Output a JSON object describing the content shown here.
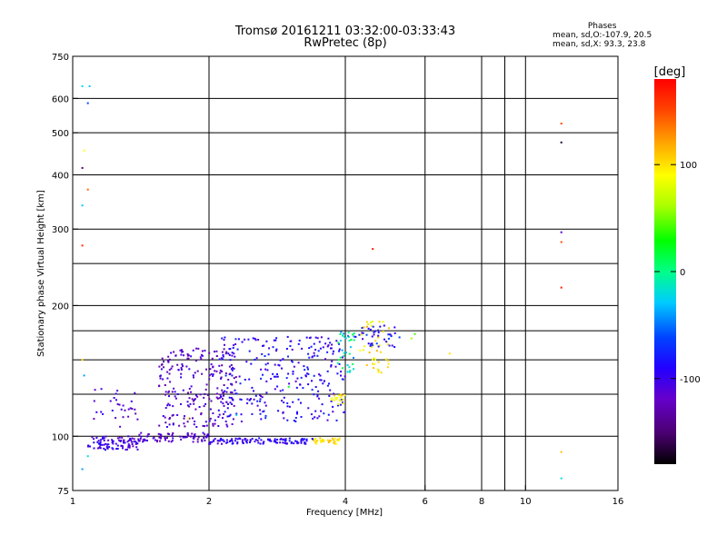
{
  "header": {
    "title": "Tromsø 20161211 03:32:00-03:33:43",
    "subtitle": "RwPretec (8p)"
  },
  "phases_box": {
    "heading": "Phases",
    "line_o": "mean, sd,O:-107.9, 20.5",
    "line_x": "mean, sd,X:  93.3, 23.8"
  },
  "colorbar": {
    "label": "[deg]",
    "range": [
      -180,
      180
    ],
    "ticks": [
      {
        "value": 100,
        "label": "100"
      },
      {
        "value": 0,
        "label": "0"
      },
      {
        "value": -100,
        "label": "-100"
      }
    ]
  },
  "chart_data": {
    "type": "scatter",
    "xlabel": "Frequency [MHz]",
    "ylabel": "Stationary phase Virtual Height [km]",
    "xscale": "log",
    "yscale": "log",
    "xlim": [
      1,
      16
    ],
    "ylim": [
      75,
      750
    ],
    "xticks": [
      {
        "value": 1,
        "label": "1"
      },
      {
        "value": 2,
        "label": "2"
      },
      {
        "value": 4,
        "label": "4"
      },
      {
        "value": 6,
        "label": "6"
      },
      {
        "value": 8,
        "label": "8"
      },
      {
        "value": 10,
        "label": "10"
      },
      {
        "value": 16,
        "label": "16"
      }
    ],
    "xgrid": [
      2,
      4,
      6,
      8,
      9,
      10
    ],
    "yticks": [
      {
        "value": 75,
        "label": "75"
      },
      {
        "value": 100,
        "label": "100"
      },
      {
        "value": 200,
        "label": "200"
      },
      {
        "value": 300,
        "label": "300"
      },
      {
        "value": 400,
        "label": "400"
      },
      {
        "value": 500,
        "label": "500"
      },
      {
        "value": 600,
        "label": "600"
      },
      {
        "value": 750,
        "label": "750"
      }
    ],
    "ygrid": [
      100,
      125,
      150,
      175,
      200,
      250,
      300,
      400,
      500,
      600
    ],
    "grid": true,
    "clusters": [
      {
        "f": [
          1.08,
          1.4
        ],
        "h": [
          93,
          100
        ],
        "phase": [
          -125,
          -85
        ],
        "n": 95
      },
      {
        "f": [
          1.4,
          2.0
        ],
        "h": [
          97,
          102
        ],
        "phase": [
          -130,
          -95
        ],
        "n": 80
      },
      {
        "f": [
          2.0,
          3.4
        ],
        "h": [
          96,
          99
        ],
        "phase": [
          -110,
          -80
        ],
        "n": 110
      },
      {
        "f": [
          3.4,
          3.9
        ],
        "h": [
          96,
          99
        ],
        "phase": [
          90,
          115
        ],
        "n": 32
      },
      {
        "f": [
          1.1,
          1.4
        ],
        "h": [
          105,
          130
        ],
        "phase": [
          -130,
          -95
        ],
        "n": 30
      },
      {
        "f": [
          1.55,
          2.3
        ],
        "h": [
          105,
          160
        ],
        "phase": [
          -135,
          -95
        ],
        "n": 230
      },
      {
        "f": [
          2.1,
          4.0
        ],
        "h": [
          108,
          170
        ],
        "phase": [
          -115,
          -70
        ],
        "n": 280
      },
      {
        "f": [
          3.7,
          4.0
        ],
        "h": [
          118,
          125
        ],
        "phase": [
          80,
          115
        ],
        "n": 18
      },
      {
        "f": [
          3.85,
          4.2
        ],
        "h": [
          140,
          175
        ],
        "phase": [
          -50,
          20
        ],
        "n": 35
      },
      {
        "f": [
          4.3,
          5.0
        ],
        "h": [
          140,
          185
        ],
        "phase": [
          80,
          120
        ],
        "n": 45
      },
      {
        "f": [
          4.2,
          5.3
        ],
        "h": [
          160,
          180
        ],
        "phase": [
          -115,
          -60
        ],
        "n": 40
      }
    ],
    "points": [
      {
        "f": 1.05,
        "h": 640,
        "phase": -20
      },
      {
        "f": 1.09,
        "h": 640,
        "phase": -30
      },
      {
        "f": 1.08,
        "h": 585,
        "phase": -60
      },
      {
        "f": 1.06,
        "h": 455,
        "phase": 90
      },
      {
        "f": 1.05,
        "h": 415,
        "phase": -150
      },
      {
        "f": 1.08,
        "h": 370,
        "phase": 140
      },
      {
        "f": 1.05,
        "h": 340,
        "phase": -30
      },
      {
        "f": 1.05,
        "h": 275,
        "phase": 160
      },
      {
        "f": 1.05,
        "h": 150,
        "phase": 100
      },
      {
        "f": 1.06,
        "h": 138,
        "phase": -40
      },
      {
        "f": 1.08,
        "h": 90,
        "phase": -20
      },
      {
        "f": 1.05,
        "h": 84,
        "phase": -40
      },
      {
        "f": 4.6,
        "h": 270,
        "phase": 170
      },
      {
        "f": 12.0,
        "h": 525,
        "phase": 150
      },
      {
        "f": 12.0,
        "h": 475,
        "phase": -170
      },
      {
        "f": 12.0,
        "h": 295,
        "phase": -110
      },
      {
        "f": 12.0,
        "h": 280,
        "phase": 150
      },
      {
        "f": 12.0,
        "h": 220,
        "phase": 170
      },
      {
        "f": 12.0,
        "h": 92,
        "phase": 110
      },
      {
        "f": 12.0,
        "h": 80,
        "phase": -20
      },
      {
        "f": 6.8,
        "h": 155,
        "phase": 100
      },
      {
        "f": 5.7,
        "h": 172,
        "phase": 40
      },
      {
        "f": 5.6,
        "h": 168,
        "phase": 60
      },
      {
        "f": 3.0,
        "h": 130,
        "phase": 20
      },
      {
        "f": 1.8,
        "h": 110,
        "phase": 90
      },
      {
        "f": 2.3,
        "h": 112,
        "phase": -30
      }
    ]
  }
}
